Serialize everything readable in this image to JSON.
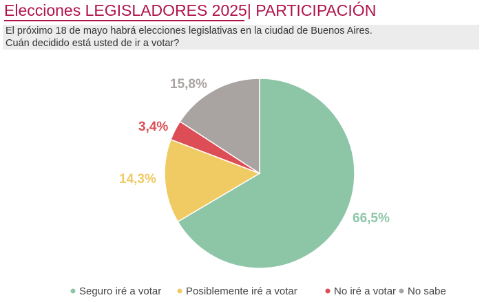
{
  "header": {
    "title": "Elecciones LEGISLADORES 2025| PARTICIPACIÓN",
    "question_line1": "El próximo 18 de mayo habrá elecciones legislativas en la ciudad de Buenos Aires.",
    "question_line2": "Cuán decidido está usted de ir a votar?"
  },
  "colors": {
    "title": "#b0124a",
    "seguro": "#8dc5a7",
    "posiblemente": "#f0ca63",
    "no_ire": "#dc4d55",
    "no_sabe": "#a9a3a2"
  },
  "chart_data": {
    "type": "pie",
    "title": "Elecciones LEGISLADORES 2025| PARTICIPACIÓN",
    "categories": [
      "Seguro iré a votar",
      "Posiblemente iré a votar",
      "No iré a votar",
      "No sabe"
    ],
    "values": [
      66.5,
      14.3,
      3.4,
      15.8
    ],
    "labels": [
      "66,5%",
      "14,3%",
      "3,4%",
      "15,8%"
    ],
    "colors": [
      "#8dc5a7",
      "#f0ca63",
      "#dc4d55",
      "#a9a3a2"
    ],
    "start_angle_deg": 0,
    "direction": "clockwise",
    "legend_position": "bottom"
  }
}
